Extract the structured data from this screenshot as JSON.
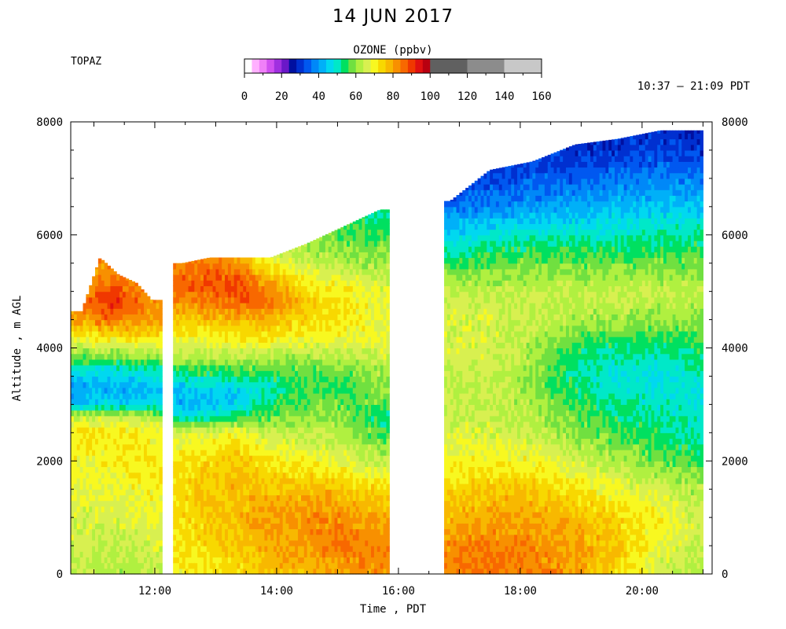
{
  "chart_data": {
    "type": "heatmap",
    "title": "14 JUN 2017",
    "instrument": "TOPAZ",
    "time_range": "10:37 – 21:09 PDT",
    "colorbar": {
      "title": "OZONE (ppbv)",
      "min": 0,
      "max": 160,
      "ticks": [
        0,
        20,
        40,
        60,
        80,
        100,
        120,
        140,
        160
      ],
      "fine_step": 4,
      "fine_colors": [
        "#ffffff",
        "#ffb0ff",
        "#f080f8",
        "#d050f0",
        "#a030e0",
        "#6a18c8",
        "#0010a0",
        "#0030d0",
        "#0058f0",
        "#0088f8",
        "#00b0f8",
        "#00d8f0",
        "#00e8c8",
        "#00e060",
        "#70e040",
        "#b0f040",
        "#d8f050",
        "#f8f820",
        "#f8d800",
        "#f8b800",
        "#f89000",
        "#f86800",
        "#f03800",
        "#e01010",
        "#b80010"
      ],
      "coarse_colors": [
        "#606060",
        "#8c8c8c",
        "#c8c8c8"
      ]
    },
    "xlabel": "Time , PDT",
    "ylabel": "Altitude , m AGL",
    "xlim": [
      10.62,
      21.15
    ],
    "ylim": [
      0,
      8000
    ],
    "x_ticks": [
      "12:00",
      "14:00",
      "16:00",
      "18:00",
      "20:00"
    ],
    "x_tick_values": [
      12,
      14,
      16,
      18,
      20
    ],
    "y_ticks": [
      0,
      2000,
      4000,
      6000,
      8000
    ],
    "grid": false,
    "segments": [
      {
        "t_start": 10.62,
        "t_end": 12.08,
        "profile_altitudes": [
          0,
          500,
          1000,
          1500,
          2000,
          2500,
          2800,
          3000,
          3300,
          3600,
          3900,
          4200,
          4500,
          4800,
          5100,
          5400
        ],
        "profiles": [
          {
            "time": 10.8,
            "max_alt": 4650,
            "ozone": [
              64,
              65,
              66,
              68,
              70,
              72,
              64,
              44,
              40,
              48,
              60,
              70,
              80,
              82,
              82,
              82
            ]
          },
          {
            "time": 11.1,
            "max_alt": 5600,
            "ozone": [
              62,
              64,
              66,
              68,
              70,
              72,
              66,
              46,
              42,
              48,
              62,
              72,
              84,
              90,
              86,
              82
            ]
          },
          {
            "time": 11.4,
            "max_alt": 5300,
            "ozone": [
              62,
              64,
              66,
              68,
              70,
              72,
              64,
              46,
              42,
              48,
              60,
              72,
              84,
              92,
              86,
              82
            ]
          },
          {
            "time": 11.7,
            "max_alt": 5150,
            "ozone": [
              63,
              65,
              67,
              70,
              72,
              72,
              64,
              46,
              42,
              48,
              62,
              74,
              82,
              86,
              82,
              82
            ]
          },
          {
            "time": 11.95,
            "max_alt": 4850,
            "ozone": [
              64,
              66,
              68,
              70,
              72,
              70,
              62,
              46,
              44,
              50,
              62,
              72,
              80,
              82,
              82,
              82
            ]
          }
        ]
      },
      {
        "t_start": 12.3,
        "t_end": 15.85,
        "profile_altitudes": [
          0,
          500,
          1000,
          1500,
          2000,
          2500,
          2800,
          3000,
          3300,
          3600,
          3900,
          4200,
          4500,
          4800,
          5100,
          5400,
          5700,
          6000,
          6300
        ],
        "profiles": [
          {
            "time": 12.45,
            "max_alt": 5500,
            "ozone": [
              70,
              72,
              74,
              74,
              72,
              66,
              48,
              42,
              44,
              54,
              64,
              70,
              76,
              82,
              86,
              84,
              80,
              80,
              80
            ]
          },
          {
            "time": 12.9,
            "max_alt": 5600,
            "ozone": [
              72,
              74,
              76,
              76,
              74,
              68,
              50,
              44,
              46,
              56,
              64,
              70,
              76,
              84,
              88,
              86,
              80,
              80,
              80
            ]
          },
          {
            "time": 13.4,
            "max_alt": 5600,
            "ozone": [
              74,
              76,
              78,
              78,
              76,
              70,
              54,
              46,
              46,
              56,
              64,
              72,
              78,
              86,
              88,
              84,
              76,
              76,
              76
            ]
          },
          {
            "time": 13.9,
            "max_alt": 5600,
            "ozone": [
              76,
              80,
              80,
              76,
              72,
              64,
              58,
              54,
              50,
              56,
              64,
              72,
              78,
              84,
              82,
              72,
              66,
              66,
              66
            ]
          },
          {
            "time": 14.5,
            "max_alt": 5850,
            "ozone": [
              78,
              82,
              82,
              78,
              70,
              64,
              60,
              58,
              56,
              58,
              62,
              70,
              74,
              76,
              72,
              66,
              62,
              62,
              62
            ]
          },
          {
            "time": 15.1,
            "max_alt": 6150,
            "ozone": [
              80,
              84,
              82,
              76,
              68,
              62,
              60,
              58,
              54,
              58,
              64,
              70,
              72,
              72,
              70,
              64,
              60,
              56,
              56
            ]
          },
          {
            "time": 15.7,
            "max_alt": 6450,
            "ozone": [
              82,
              84,
              80,
              74,
              64,
              56,
              52,
              58,
              60,
              62,
              66,
              68,
              68,
              68,
              66,
              62,
              60,
              56,
              52
            ]
          }
        ]
      },
      {
        "t_start": 16.75,
        "t_end": 21.0,
        "profile_altitudes": [
          0,
          500,
          1000,
          1500,
          2000,
          2500,
          3000,
          3500,
          4000,
          4500,
          5000,
          5500,
          6000,
          6500,
          7000,
          7500,
          7800
        ],
        "profiles": [
          {
            "time": 16.85,
            "max_alt": 6600,
            "ozone": [
              84,
              82,
              78,
              74,
              70,
              66,
              64,
              64,
              66,
              66,
              64,
              56,
              46,
              36,
              30,
              30,
              30
            ]
          },
          {
            "time": 17.5,
            "max_alt": 7150,
            "ozone": [
              86,
              84,
              80,
              76,
              70,
              66,
              64,
              64,
              66,
              66,
              64,
              58,
              48,
              38,
              32,
              30,
              30
            ]
          },
          {
            "time": 18.2,
            "max_alt": 7300,
            "ozone": [
              84,
              82,
              80,
              76,
              70,
              64,
              62,
              60,
              62,
              64,
              64,
              58,
              50,
              40,
              34,
              30,
              30
            ]
          },
          {
            "time": 18.9,
            "max_alt": 7600,
            "ozone": [
              80,
              80,
              78,
              72,
              66,
              60,
              56,
              52,
              54,
              62,
              64,
              58,
              50,
              42,
              34,
              30,
              30
            ]
          },
          {
            "time": 19.6,
            "max_alt": 7700,
            "ozone": [
              74,
              76,
              74,
              68,
              62,
              56,
              52,
              48,
              52,
              62,
              64,
              58,
              50,
              44,
              36,
              30,
              30
            ]
          },
          {
            "time": 20.3,
            "max_alt": 7850,
            "ozone": [
              66,
              68,
              70,
              66,
              58,
              54,
              50,
              48,
              52,
              60,
              64,
              58,
              52,
              44,
              38,
              32,
              30
            ]
          },
          {
            "time": 20.9,
            "max_alt": 7850,
            "ozone": [
              62,
              64,
              66,
              62,
              56,
              50,
              48,
              50,
              54,
              60,
              64,
              58,
              52,
              44,
              36,
              30,
              28
            ]
          }
        ]
      }
    ]
  }
}
